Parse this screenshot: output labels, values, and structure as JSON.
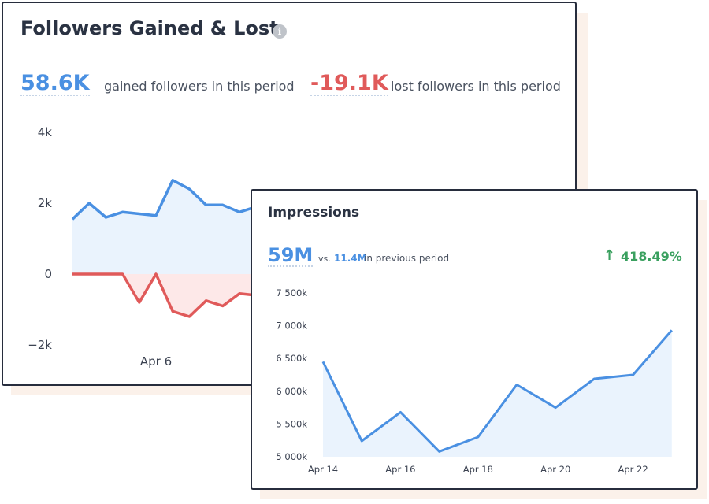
{
  "followers": {
    "title": "Followers Gained & Lost",
    "info_icon": "info-icon",
    "gained_value": "58.6K",
    "gained_label": "gained followers in this period",
    "lost_value": "-19.1K",
    "lost_label": "lost followers in this period"
  },
  "impressions": {
    "title": "Impressions",
    "total_value": "59M",
    "vs_label": "vs.",
    "previous_value": "11.4M",
    "previous_label": "in previous period",
    "change_value": "418.49%",
    "change_icon": "arrow-up-icon"
  },
  "colors": {
    "gained": "#4a90e2",
    "lost": "#e05a5a",
    "positive_change": "#3aa05f"
  },
  "chart_data": [
    {
      "type": "line",
      "x": [
        "Apr 1",
        "Apr 2",
        "Apr 3",
        "Apr 4",
        "Apr 5",
        "Apr 6",
        "Apr 7",
        "Apr 8",
        "Apr 9",
        "Apr 10",
        "Apr 11",
        "Apr 12"
      ],
      "x_tick_labels": [
        "Apr 6"
      ],
      "y_tick_labels": [
        "4k",
        "2k",
        "0",
        "−2k"
      ],
      "ylim": [
        -2000,
        4000
      ],
      "series": [
        {
          "values": [
            1550,
            2000,
            1600,
            1750,
            1700,
            1650,
            2650,
            2400,
            1950,
            1950,
            1750,
            1900
          ]
        },
        {
          "values": [
            0,
            0,
            0,
            0,
            -800,
            0,
            -1050,
            -1200,
            -750,
            -900,
            -550,
            -600
          ]
        }
      ],
      "grid": false
    },
    {
      "type": "line",
      "x": [
        "Apr 14",
        "Apr 15",
        "Apr 16",
        "Apr 17",
        "Apr 18",
        "Apr 19",
        "Apr 20",
        "Apr 21",
        "Apr 22",
        "Apr 23"
      ],
      "x_tick_labels": [
        "Apr 14",
        "Apr 16",
        "Apr 18",
        "Apr 20",
        "Apr 22"
      ],
      "y_tick_labels": [
        "7 500k",
        "7 000k",
        "6 500k",
        "6 000k",
        "5 500k",
        "5 000k"
      ],
      "ylim": [
        5000000,
        7500000
      ],
      "series": [
        {
          "values": [
            6450000,
            5240000,
            5680000,
            5080000,
            5300000,
            6100000,
            5750000,
            6190000,
            6250000,
            6930000
          ]
        }
      ],
      "grid": false
    }
  ]
}
